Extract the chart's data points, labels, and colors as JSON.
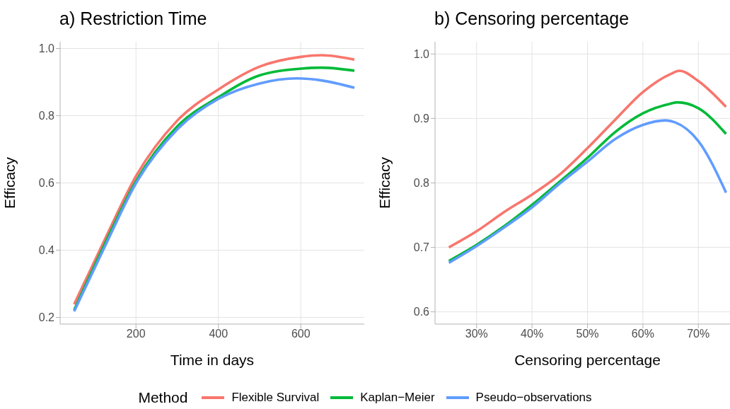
{
  "chart_data": [
    {
      "type": "line",
      "title": "a) Restriction Time",
      "xlabel": "Time in days",
      "ylabel": "Efficacy",
      "legend_title": "Method",
      "legend": "bottom",
      "grid": true,
      "line_style": "solid",
      "marker": "none",
      "xlim": [
        16,
        754
      ],
      "xticks": [
        200,
        400,
        600
      ],
      "ylim": [
        0.18,
        1.02
      ],
      "yticks": [
        0.2,
        0.4,
        0.6,
        0.8,
        {
          "value": 1,
          "label": "1.0"
        }
      ],
      "series": [
        {
          "name": "Flexible Survival",
          "color": "#f8766d",
          "x": [
            50,
            125,
            200,
            300,
            400,
            500,
            600,
            650,
            730
          ],
          "values": [
            0.239,
            0.433,
            0.62,
            0.785,
            0.878,
            0.946,
            0.975,
            0.98,
            0.967
          ]
        },
        {
          "name": "Kaplan−Meier",
          "color": "#00ba38",
          "x": [
            50,
            125,
            200,
            300,
            400,
            500,
            600,
            650,
            730
          ],
          "values": [
            0.222,
            0.42,
            0.605,
            0.768,
            0.855,
            0.92,
            0.94,
            0.943,
            0.934
          ]
        },
        {
          "name": "Pseudo−observations",
          "color": "#619cff",
          "x": [
            50,
            125,
            200,
            300,
            400,
            500,
            590,
            650,
            730
          ],
          "values": [
            0.218,
            0.412,
            0.599,
            0.759,
            0.85,
            0.896,
            0.911,
            0.905,
            0.883
          ]
        }
      ]
    },
    {
      "type": "line",
      "title": "b) Censoring percentage",
      "xlabel": "Censoring percentage",
      "ylabel": "Efficacy",
      "grid": true,
      "line_style": "solid",
      "marker": "none",
      "xlim": [
        22.5,
        77.5
      ],
      "xticks": [
        {
          "value": 30,
          "label": "30%"
        },
        {
          "value": 40,
          "label": "40%"
        },
        {
          "value": 50,
          "label": "50%"
        },
        {
          "value": 60,
          "label": "60%"
        },
        {
          "value": 70,
          "label": "70%"
        }
      ],
      "ylim": [
        0.581,
        1.019
      ],
      "yticks": [
        0.6,
        0.7,
        0.8,
        0.9,
        {
          "value": 1,
          "label": "1.0"
        }
      ],
      "series": [
        {
          "color": "#f8766d",
          "x": [
            25,
            30,
            35,
            40,
            45,
            50,
            55,
            60,
            65,
            66.6,
            70,
            75
          ],
          "values": [
            0.7,
            0.725,
            0.755,
            0.782,
            0.813,
            0.854,
            0.898,
            0.941,
            0.969,
            0.974,
            0.958,
            0.918
          ]
        },
        {
          "color": "#00ba38",
          "x": [
            25,
            30,
            35,
            40,
            45,
            50,
            55,
            60,
            65,
            66.2,
            70,
            75
          ],
          "values": [
            0.679,
            0.704,
            0.733,
            0.766,
            0.802,
            0.839,
            0.879,
            0.908,
            0.923,
            0.925,
            0.916,
            0.876
          ]
        },
        {
          "color": "#619cff",
          "x": [
            25,
            30,
            35,
            40,
            45,
            50,
            55,
            60,
            64.1,
            65.8,
            70,
            75
          ],
          "values": [
            0.676,
            0.702,
            0.731,
            0.762,
            0.799,
            0.833,
            0.868,
            0.89,
            0.897,
            0.894,
            0.865,
            0.785
          ]
        }
      ]
    }
  ]
}
